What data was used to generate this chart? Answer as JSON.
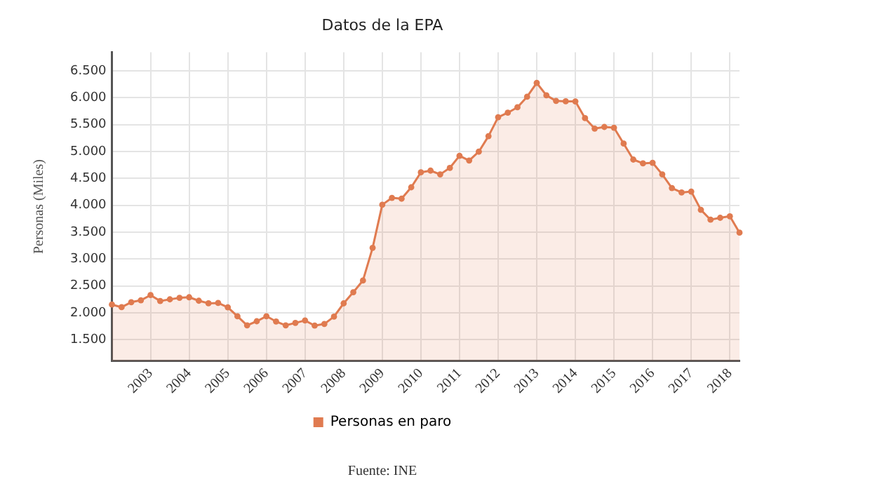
{
  "chart_data": {
    "type": "area",
    "title": "Datos de la EPA",
    "ylabel": "Personas (Miles)",
    "annotations": [
      "Fuente: INE"
    ],
    "categories": [
      null,
      null,
      null,
      null,
      "2003",
      null,
      null,
      null,
      "2004",
      null,
      null,
      null,
      "2005",
      null,
      null,
      null,
      "2006",
      null,
      null,
      null,
      "2007",
      null,
      null,
      null,
      "2008",
      null,
      null,
      null,
      "2009",
      null,
      null,
      null,
      "2010",
      null,
      null,
      null,
      "2011",
      null,
      null,
      null,
      "2012",
      null,
      null,
      null,
      "2013",
      null,
      null,
      null,
      "2014",
      null,
      null,
      null,
      "2015",
      null,
      null,
      null,
      "2016",
      null,
      null,
      null,
      "2017",
      null,
      null,
      null,
      "2018",
      null
    ],
    "series": [
      {
        "name": "Personas en paro",
        "color": "#e07b50",
        "values": [
          2152,
          2103,
          2196,
          2232,
          2328,
          2218,
          2249,
          2277,
          2288,
          2223,
          2175,
          2181,
          2101,
          1933,
          1765,
          1841,
          1935,
          1837,
          1765,
          1810,
          1856,
          1760,
          1791,
          1927,
          2174,
          2382,
          2599,
          3208,
          4010,
          4138,
          4123,
          4335,
          4613,
          4645,
          4575,
          4697,
          4921,
          4834,
          4998,
          5287,
          5640,
          5723,
          5824,
          6021,
          6278,
          6047,
          5943,
          5936,
          5934,
          5622,
          5428,
          5458,
          5444,
          5149,
          4851,
          4780,
          4791,
          4575,
          4321,
          4238,
          4256,
          3915,
          3732,
          3767,
          3796,
          3491
        ]
      }
    ],
    "ylim": [
      1100,
      6850
    ],
    "yticks": [
      {
        "value": 1500,
        "label": "1.500"
      },
      {
        "value": 2000,
        "label": "2.000"
      },
      {
        "value": 2500,
        "label": "2.500"
      },
      {
        "value": 3000,
        "label": "3.000"
      },
      {
        "value": 3500,
        "label": "3.500"
      },
      {
        "value": 4000,
        "label": "4.000"
      },
      {
        "value": 4500,
        "label": "4.500"
      },
      {
        "value": 5000,
        "label": "5.000"
      },
      {
        "value": 5500,
        "label": "5.500"
      },
      {
        "value": 6000,
        "label": "6.000"
      },
      {
        "value": 6500,
        "label": "6.500"
      }
    ],
    "grid": true,
    "legend": "bottom",
    "marker": "circle",
    "line_style": "solid"
  }
}
